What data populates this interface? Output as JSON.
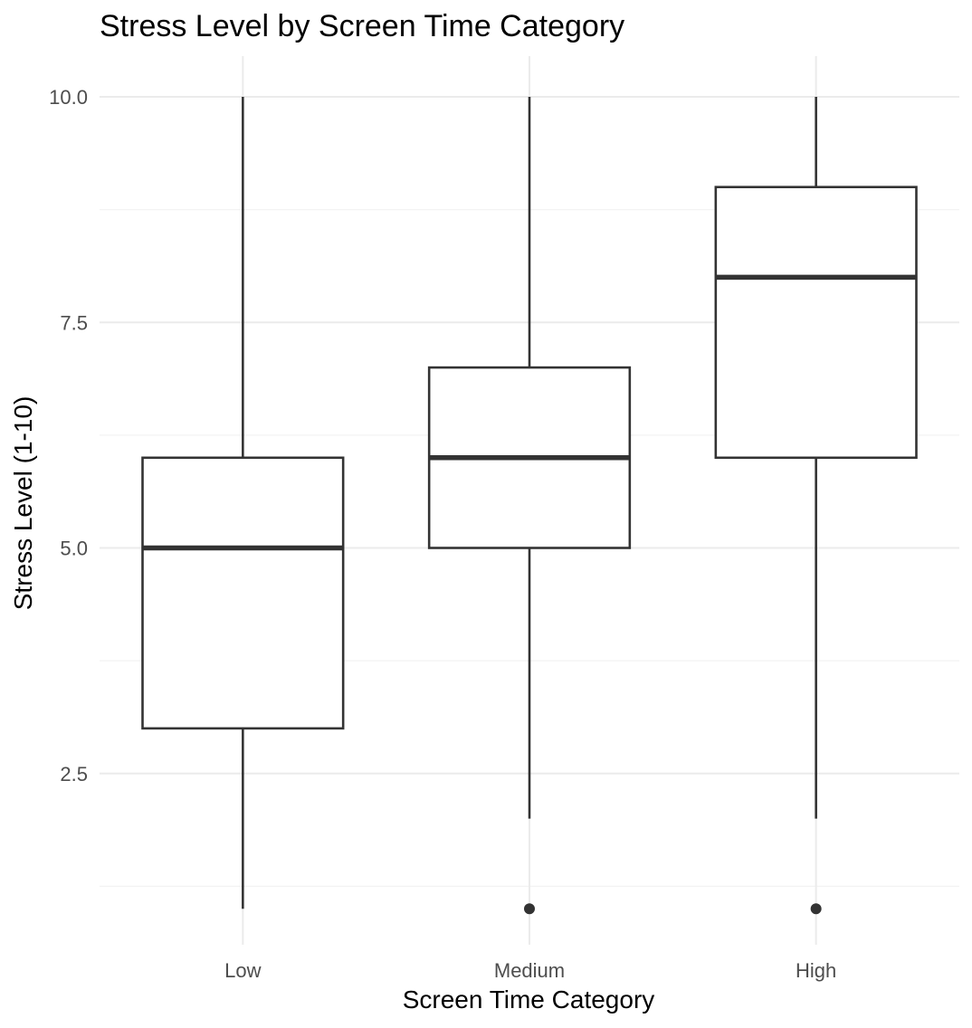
{
  "chart_data": {
    "type": "boxplot",
    "title": "Stress Level by Screen Time Category",
    "xlabel": "Screen Time Category",
    "ylabel": "Stress Level (1-10)",
    "categories": [
      "Low",
      "Medium",
      "High"
    ],
    "ylim": [
      0.9,
      10.9
    ],
    "y_ticks": [
      2.5,
      5.0,
      7.5,
      10.0
    ],
    "y_tick_labels": [
      "2.5",
      "5.0",
      "7.5",
      "10.0"
    ],
    "y_minor_ticks": [
      1.25,
      3.75,
      6.25,
      8.75
    ],
    "grid": true,
    "boxes": [
      {
        "category": "Low",
        "whisker_low": 1,
        "q1": 3,
        "median": 5,
        "q3": 6,
        "whisker_high": 10,
        "outliers": []
      },
      {
        "category": "Medium",
        "whisker_low": 2,
        "q1": 5,
        "median": 6,
        "q3": 7,
        "whisker_high": 10,
        "outliers": [
          1
        ]
      },
      {
        "category": "High",
        "whisker_low": 2,
        "q1": 6,
        "median": 8,
        "q3": 9,
        "whisker_high": 10,
        "outliers": [
          1
        ]
      }
    ],
    "colors": {
      "box_line": "#333333",
      "box_fill": "#ffffff",
      "grid_major": "#ebebeb",
      "grid_minor": "#f3f3f3",
      "tick_text": "#4d4d4d"
    }
  }
}
